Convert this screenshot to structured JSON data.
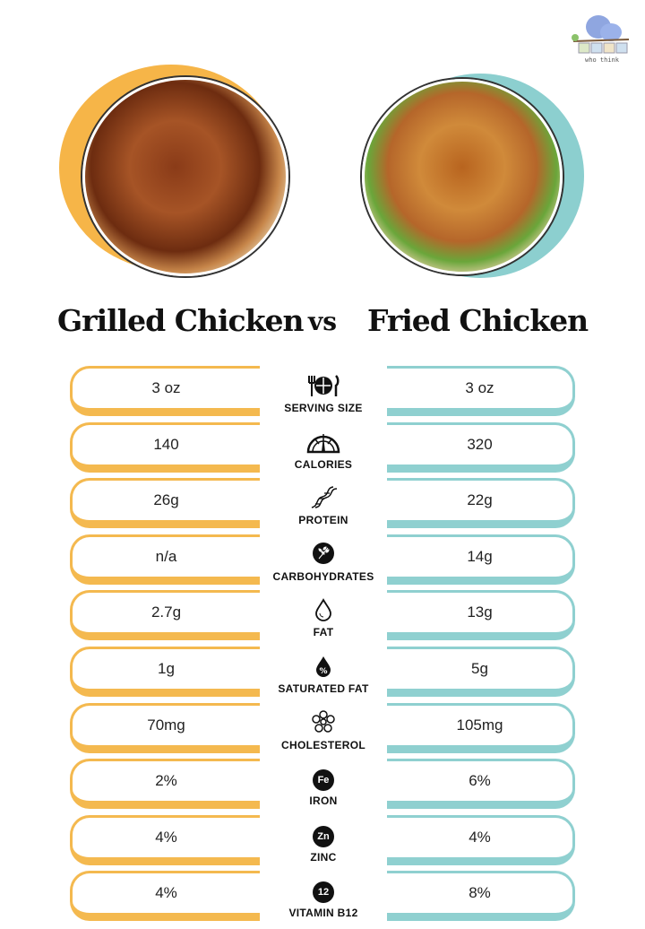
{
  "logo": {
    "text": "MOMS who think"
  },
  "left": {
    "title": "Grilled Chicken",
    "color": "#f4b94f"
  },
  "vs": "vs",
  "right": {
    "title": "Fried Chicken",
    "color": "#8fd0d0"
  },
  "rows": [
    {
      "label": "SERVING SIZE",
      "icon": "fork-plate-knife-icon",
      "left": "3 oz",
      "right": "3 oz"
    },
    {
      "label": "CALORIES",
      "icon": "gauge-icon",
      "left": "140",
      "right": "320"
    },
    {
      "label": "PROTEIN",
      "icon": "dna-icon",
      "left": "26g",
      "right": "22g"
    },
    {
      "label": "CARBOHYDRATES",
      "icon": "wheat-icon",
      "left": "n/a",
      "right": "14g"
    },
    {
      "label": "FAT",
      "icon": "droplet-icon",
      "left": "2.7g",
      "right": "13g"
    },
    {
      "label": "SATURATED FAT",
      "icon": "percent-droplet-icon",
      "left": "1g",
      "right": "5g"
    },
    {
      "label": "CHOLESTEROL",
      "icon": "molecule-icon",
      "left": "70mg",
      "right": "105mg"
    },
    {
      "label": "IRON",
      "icon": "fe-badge-icon",
      "badge": "Fe",
      "left": "2%",
      "right": "6%"
    },
    {
      "label": "ZINC",
      "icon": "zn-badge-icon",
      "badge": "Zn",
      "left": "4%",
      "right": "4%"
    },
    {
      "label": "VITAMIN B12",
      "icon": "b12-badge-icon",
      "badge": "12",
      "left": "4%",
      "right": "8%"
    }
  ]
}
